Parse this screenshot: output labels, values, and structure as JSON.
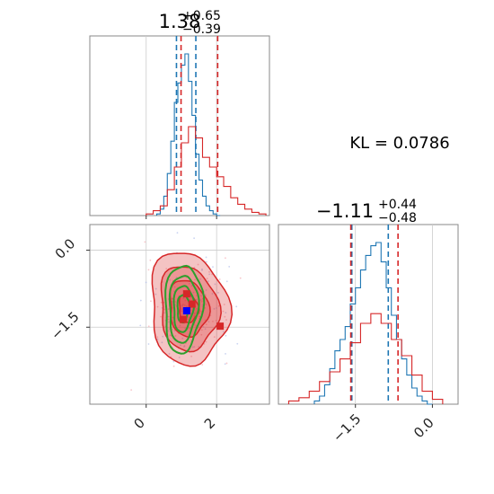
{
  "chart_data": {
    "type": "corner",
    "parameters": [
      {
        "name": "",
        "title": {
          "main": "1.38",
          "sup": "+0.65",
          "sub": "−0.39"
        },
        "axis_range": [
          -1.6,
          3.5
        ],
        "ticks": [
          0,
          2
        ],
        "tick_labels": [
          "0",
          "2"
        ]
      },
      {
        "name": "",
        "title": {
          "main": "−1.11",
          "sup": "+0.44",
          "sub": "−0.48"
        },
        "axis_range": [
          -3.0,
          0.5
        ],
        "ticks": [
          -1.5,
          0.0
        ],
        "tick_labels": [
          "−1.5",
          "0.0"
        ]
      }
    ],
    "annotation": "KL = 0.0786",
    "series": [
      {
        "name": "",
        "color": "#1f77b4",
        "p0": {
          "bin_edges": [
            0.3,
            0.4,
            0.5,
            0.6,
            0.7,
            0.8,
            0.9,
            1.0,
            1.1,
            1.2,
            1.3,
            1.4,
            1.5,
            1.6,
            1.7,
            1.8,
            1.9,
            2.0,
            2.1
          ],
          "counts": [
            0.01,
            0.04,
            0.12,
            0.26,
            0.46,
            0.7,
            0.82,
            0.93,
            1.0,
            0.83,
            0.62,
            0.38,
            0.22,
            0.12,
            0.06,
            0.03,
            0.01,
            0.0
          ],
          "quantiles": [
            0.86,
            1.41
          ]
        },
        "p1": {
          "bin_edges": [
            -2.3,
            -2.2,
            -2.1,
            -2.0,
            -1.9,
            -1.8,
            -1.7,
            -1.6,
            -1.5,
            -1.4,
            -1.3,
            -1.2,
            -1.1,
            -1.0,
            -0.9,
            -0.8,
            -0.7,
            -0.6,
            -0.5,
            -0.4,
            -0.3,
            -0.2,
            -0.1,
            0.0
          ],
          "counts": [
            0.02,
            0.05,
            0.12,
            0.22,
            0.33,
            0.4,
            0.48,
            0.62,
            0.72,
            0.83,
            0.92,
            0.98,
            1.0,
            0.88,
            0.72,
            0.55,
            0.4,
            0.28,
            0.18,
            0.1,
            0.05,
            0.02,
            0.0
          ],
          "quantiles": [
            -1.57,
            -0.86
          ]
        }
      },
      {
        "name": "",
        "color": "#d62728",
        "p0": {
          "bin_edges": [
            0.0,
            0.2,
            0.4,
            0.6,
            0.8,
            1.0,
            1.2,
            1.4,
            1.6,
            1.8,
            2.0,
            2.2,
            2.4,
            2.6,
            2.8,
            3.0,
            3.2,
            3.4
          ],
          "counts": [
            0.01,
            0.03,
            0.06,
            0.16,
            0.3,
            0.45,
            0.55,
            0.48,
            0.36,
            0.3,
            0.24,
            0.18,
            0.11,
            0.07,
            0.04,
            0.02,
            0.01
          ],
          "quantiles": [
            0.99,
            2.03
          ]
        },
        "p1": {
          "bin_edges": [
            -2.8,
            -2.6,
            -2.4,
            -2.2,
            -2.0,
            -1.8,
            -1.6,
            -1.4,
            -1.2,
            -1.0,
            -0.8,
            -0.6,
            -0.4,
            -0.2,
            0.0,
            0.2
          ],
          "counts": [
            0.02,
            0.04,
            0.08,
            0.14,
            0.2,
            0.28,
            0.38,
            0.5,
            0.56,
            0.5,
            0.4,
            0.3,
            0.18,
            0.08,
            0.03
          ],
          "quantiles": [
            -1.59,
            -0.67
          ]
        }
      }
    ],
    "contours": [
      {
        "color": "#d62728",
        "filled": true,
        "center": [
          1.2,
          -1.13
        ],
        "sigma": [
          0.55,
          0.55
        ],
        "rho": -0.1,
        "levels": [
          0.5,
          1.0,
          1.5,
          2.0
        ]
      },
      {
        "color": "#2ca02c",
        "filled": false,
        "center": [
          1.05,
          -1.13
        ],
        "sigma": [
          0.28,
          0.45
        ],
        "rho": 0.1,
        "levels": [
          0.6,
          1.0,
          1.45,
          1.9
        ]
      }
    ],
    "markers": [
      {
        "color": "#d62728",
        "x": 1.15,
        "y": -0.85
      },
      {
        "color": "#d62728",
        "x": 1.3,
        "y": -1.05
      },
      {
        "color": "#d62728",
        "x": 2.1,
        "y": -1.48
      },
      {
        "color": "#d62728",
        "x": 1.05,
        "y": -1.35
      },
      {
        "color": "#0000ff",
        "x": 1.15,
        "y": -1.18
      }
    ]
  }
}
